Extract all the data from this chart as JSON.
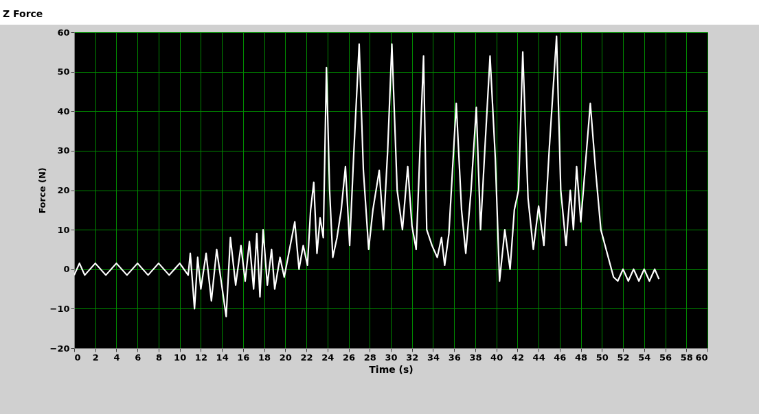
{
  "chart_data": {
    "type": "line",
    "title": "Z Force",
    "xlabel": "Time (s)",
    "ylabel": "Force (N)",
    "xlim": [
      0,
      60
    ],
    "xticks": [
      0,
      2,
      4,
      6,
      8,
      10,
      12,
      14,
      16,
      18,
      20,
      22,
      24,
      26,
      28,
      30,
      32,
      34,
      36,
      38,
      40,
      42,
      44,
      46,
      48,
      50,
      52,
      54,
      56,
      58,
      60
    ],
    "ylim": [
      -20,
      60
    ],
    "yticks": [
      -20,
      -10,
      0,
      10,
      20,
      30,
      40,
      50,
      60
    ],
    "grid": true,
    "line_style": "solid",
    "marker": "none",
    "series": [
      {
        "color": "#ffffff",
        "x": [
          0,
          0.5,
          1,
          2,
          3,
          4,
          5,
          6,
          7,
          8,
          9,
          10,
          10.8,
          11,
          11.4,
          11.7,
          12,
          12.5,
          13,
          13.5,
          14.4,
          14.8,
          15.3,
          15.8,
          16.2,
          16.6,
          17,
          17.3,
          17.6,
          17.9,
          18.3,
          18.7,
          19,
          19.5,
          19.9,
          20.9,
          21.3,
          21.7,
          22.1,
          22.4,
          22.7,
          23,
          23.3,
          23.6,
          23.9,
          24.2,
          24.5,
          24.9,
          25.3,
          25.7,
          26.1,
          26.5,
          27,
          27.4,
          27.9,
          28.3,
          28.9,
          29.3,
          29.7,
          30.1,
          30.6,
          31.1,
          31.6,
          32,
          32.4,
          33.1,
          33.4,
          33.9,
          34.4,
          34.8,
          35.1,
          35.5,
          36.2,
          36.7,
          37.1,
          37.6,
          38.1,
          38.5,
          38.9,
          39.4,
          39.9,
          40.3,
          40.8,
          41.3,
          41.7,
          42.1,
          42.5,
          43,
          43.5,
          44,
          44.5,
          45,
          45.7,
          46.1,
          46.6,
          47,
          47.3,
          47.6,
          48,
          48.9,
          49.4,
          49.9,
          50.4,
          51.1,
          51.5,
          52,
          52.5,
          53,
          53.5,
          54,
          54.5,
          55,
          55.4
        ],
        "values": [
          -1.5,
          1.5,
          -1.5,
          1.5,
          -1.5,
          1.5,
          -1.5,
          1.5,
          -1.5,
          1.5,
          -1.5,
          1.5,
          -1.5,
          4,
          -10,
          3,
          -5,
          4,
          -8,
          5,
          -12,
          8,
          -4,
          6,
          -3,
          7,
          -5,
          9,
          -7,
          10,
          -4,
          5,
          -5,
          3,
          -2,
          12,
          0,
          6,
          1,
          15,
          22,
          4,
          13,
          8,
          51,
          20,
          3,
          8,
          15,
          26,
          6,
          30,
          57,
          25,
          5,
          15,
          25,
          10,
          30,
          57,
          20,
          10,
          26,
          11,
          5,
          54,
          10,
          6,
          3,
          8,
          1,
          9,
          42,
          15,
          4,
          20,
          41,
          10,
          30,
          54,
          28,
          -3,
          10,
          0,
          15,
          20,
          55,
          18,
          5,
          16,
          6,
          30,
          59,
          20,
          6,
          20,
          10,
          26,
          12,
          42,
          25,
          10,
          5,
          -2,
          -3,
          0,
          -3,
          0,
          -3,
          0,
          -3,
          0,
          -2.5
        ]
      }
    ]
  }
}
